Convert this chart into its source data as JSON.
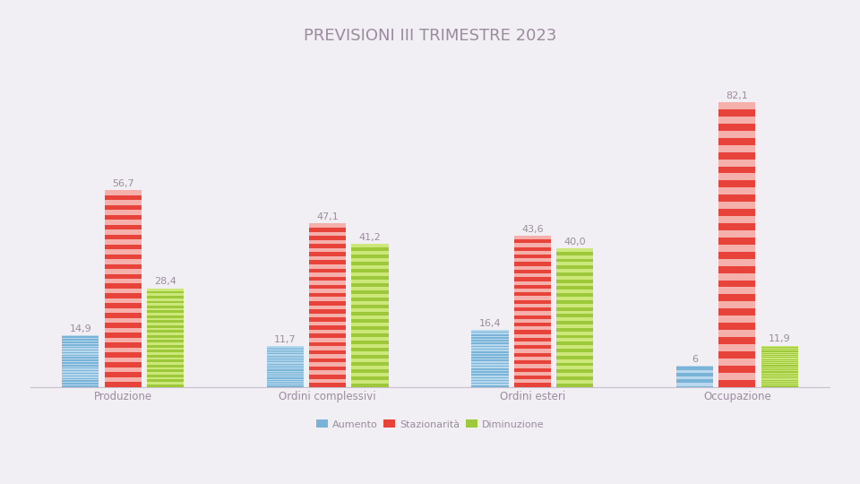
{
  "title": "PREVISIONI III TRIMESTRE 2023",
  "title_color": "#9a8c9e",
  "categories": [
    "Produzione",
    "Ordini complessivi",
    "Ordini esteri",
    "Occupazione"
  ],
  "series": {
    "Aumento": [
      14.9,
      11.7,
      16.4,
      6.0
    ],
    "Stazionarità": [
      56.7,
      47.1,
      43.6,
      82.1
    ],
    "Diminuzione": [
      28.4,
      41.2,
      40.0,
      11.9
    ]
  },
  "value_labels": {
    "Aumento": [
      "14,9",
      "11,7",
      "16,4",
      "6"
    ],
    "Stazionarità": [
      "56,7",
      "47,1",
      "43,6",
      "82,1"
    ],
    "Diminuzione": [
      "28,4",
      "41,2",
      "40,0",
      "11,9"
    ]
  },
  "colors": {
    "Aumento": "#7ab3d8",
    "Stazionarità": "#e8433a",
    "Diminuzione": "#9dc83a"
  },
  "stripe_colors": {
    "Aumento": "#b8d8ee",
    "Stazionarità": "#f5b0ac",
    "Diminuzione": "#cde87a"
  },
  "bar_width": 0.18,
  "background_color": "#f2eff4",
  "label_fontsize": 8.5,
  "legend_fontsize": 8,
  "title_fontsize": 13,
  "value_fontsize": 8,
  "ylim": [
    0,
    92
  ],
  "xlim": [
    -0.45,
    3.45
  ]
}
